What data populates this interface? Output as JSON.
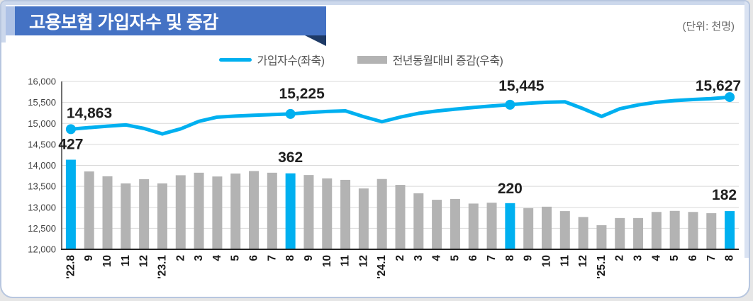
{
  "card": {
    "title": "고용보험 가입자수 및 증감",
    "unit_label": "(단위: 천명)"
  },
  "legend": {
    "line_label": "가입자수(좌축)",
    "bar_label": "전년동월대비 증감(우축)"
  },
  "colors": {
    "line": "#00b0f0",
    "bar": "#b3b3b3",
    "bar_highlight": "#00b0f0",
    "grid": "#d9d9d9",
    "axis_line": "#404040",
    "baseline": "#262626",
    "tick_text": "#404040",
    "category_text": "#1a1a1a",
    "annotation_text": "#1f1f1f",
    "banner_bg": "#4472c4",
    "banner_accent": "#aec2e6",
    "banner_fold": "#1e3a66"
  },
  "chart_data": {
    "type": "combo-line-bar",
    "title": "고용보험 가입자수 및 증감",
    "unit": "천명",
    "grid": true,
    "legend_position": "top",
    "categories": [
      "'22.8",
      "9",
      "10",
      "11",
      "12",
      "'23.1",
      "2",
      "3",
      "4",
      "5",
      "6",
      "7",
      "8",
      "9",
      "10",
      "11",
      "12",
      "'24.1",
      "2",
      "3",
      "4",
      "5",
      "6",
      "7",
      "8",
      "9",
      "10",
      "11",
      "12",
      "'25.1",
      "2",
      "3",
      "4",
      "5",
      "6",
      "7",
      "8"
    ],
    "series": [
      {
        "name": "가입자수(좌축)",
        "type": "line",
        "axis": "left",
        "values": [
          14863,
          14900,
          14935,
          14965,
          14880,
          14750,
          14870,
          15050,
          15150,
          15175,
          15195,
          15210,
          15225,
          15260,
          15285,
          15300,
          15160,
          15040,
          15150,
          15240,
          15295,
          15340,
          15380,
          15415,
          15445,
          15480,
          15505,
          15515,
          15350,
          15165,
          15350,
          15440,
          15505,
          15545,
          15570,
          15590,
          15627
        ]
      },
      {
        "name": "전년동월대비 증감(우축)",
        "type": "bar",
        "axis": "right",
        "values": [
          427,
          371,
          348,
          314,
          334,
          314,
          353,
          365,
          347,
          361,
          373,
          365,
          362,
          354,
          338,
          331,
          290,
          335,
          307,
          267,
          236,
          240,
          218,
          222,
          220,
          196,
          203,
          182,
          154,
          115,
          149,
          149,
          178,
          183,
          178,
          172,
          182
        ],
        "highlighted_indices": [
          0,
          12,
          24,
          36
        ]
      }
    ],
    "left_axis": {
      "min": 12000,
      "max": 16000,
      "step": 500,
      "tick_labels": [
        "16,000",
        "15,500",
        "15,000",
        "14,500",
        "14,000",
        "13,500",
        "13,000",
        "12,500",
        "12,000"
      ]
    },
    "right_axis": {
      "min": 0,
      "max": 800,
      "visible": false
    },
    "annotations": [
      {
        "index": 0,
        "category": "'22.8",
        "line_label": "14,863",
        "bar_label": "427"
      },
      {
        "index": 12,
        "category": "'23.8",
        "line_label": "15,225",
        "bar_label": "362"
      },
      {
        "index": 24,
        "category": "'24.8",
        "line_label": "15,445",
        "bar_label": "220"
      },
      {
        "index": 36,
        "category": "'25.8",
        "line_label": "15,627",
        "bar_label": "182"
      }
    ]
  }
}
